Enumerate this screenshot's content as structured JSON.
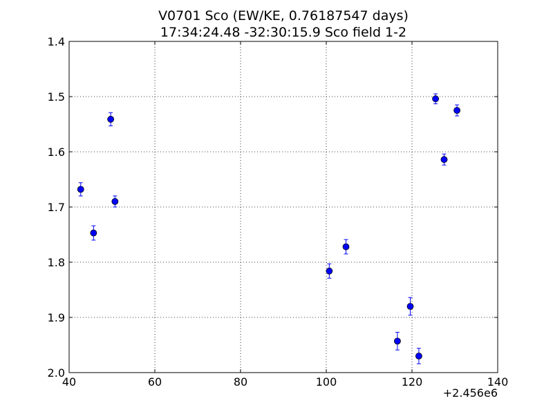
{
  "chart_data": {
    "type": "scatter",
    "title_line1": "V0701 Sco (EW/KE, 0.76187547 days)",
    "title_line2": "17:34:24.48 -32:30:15.9 Sco field 1-2",
    "xlabel": "",
    "ylabel": "",
    "x_offset_label": "+2.456e6",
    "xlim": [
      40,
      140
    ],
    "ylim": [
      1.4,
      2.0
    ],
    "y_inverted": true,
    "grid": true,
    "x_ticks": [
      "40",
      "60",
      "80",
      "100",
      "120",
      "140"
    ],
    "y_ticks": [
      "1.4",
      "1.5",
      "1.6",
      "1.7",
      "1.8",
      "1.9",
      "2.0"
    ],
    "marker_color": "#0000ff",
    "points": [
      {
        "x": 42.7,
        "y": 1.668,
        "err": 0.012
      },
      {
        "x": 45.7,
        "y": 1.747,
        "err": 0.013
      },
      {
        "x": 49.7,
        "y": 1.541,
        "err": 0.012
      },
      {
        "x": 50.7,
        "y": 1.69,
        "err": 0.01
      },
      {
        "x": 100.7,
        "y": 1.816,
        "err": 0.013
      },
      {
        "x": 104.6,
        "y": 1.772,
        "err": 0.013
      },
      {
        "x": 116.6,
        "y": 1.943,
        "err": 0.016
      },
      {
        "x": 119.6,
        "y": 1.88,
        "err": 0.016
      },
      {
        "x": 121.6,
        "y": 1.97,
        "err": 0.014
      },
      {
        "x": 125.5,
        "y": 1.504,
        "err": 0.009
      },
      {
        "x": 127.5,
        "y": 1.614,
        "err": 0.01
      },
      {
        "x": 130.5,
        "y": 1.525,
        "err": 0.01
      }
    ]
  }
}
